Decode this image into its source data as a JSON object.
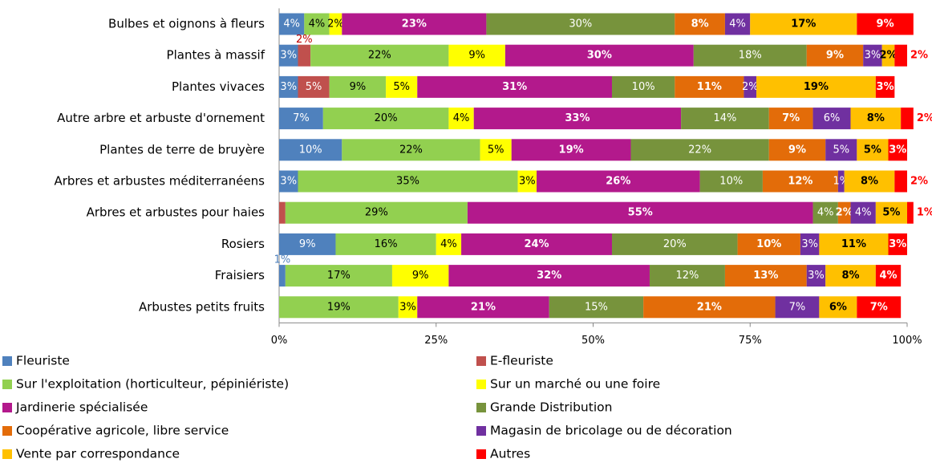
{
  "chart_data": {
    "type": "stacked_bar_horizontal",
    "categories": [
      "Bulbes et oignons à fleurs",
      "Plantes à massif",
      "Plantes vivaces",
      "Autre arbre et arbuste d'ornement",
      "Plantes de terre de bruyère",
      "Arbres et arbustes méditerranéens",
      "Arbres et arbustes pour haies",
      "Rosiers",
      "Fraisiers",
      "Arbustes petits fruits"
    ],
    "xlim": [
      0,
      100
    ],
    "xticks": [
      {
        "value": 0,
        "label": "0%"
      },
      {
        "value": 25,
        "label": "25%"
      },
      {
        "value": 50,
        "label": "50%"
      },
      {
        "value": 75,
        "label": "75%"
      },
      {
        "value": 100,
        "label": "100%"
      }
    ],
    "series": [
      {
        "name": "Fleuriste",
        "color": "#4f81bd",
        "values": [
          4,
          3,
          3,
          7,
          10,
          3,
          0,
          9,
          1,
          0
        ],
        "value_labels": [
          "4%",
          "3%",
          "3%",
          "7%",
          "10%",
          "3%",
          null,
          "9%",
          "1%",
          null
        ]
      },
      {
        "name": "E-fleuriste",
        "color": "#c0504d",
        "values": [
          0,
          2,
          5,
          0,
          0,
          0,
          1,
          0,
          0,
          0
        ],
        "value_labels": [
          null,
          "2%",
          "5%",
          null,
          null,
          null,
          "1%",
          null,
          null,
          null
        ]
      },
      {
        "name": "Sur l'exploitation (horticulteur, pépiniériste)",
        "color": "#92d050",
        "values": [
          4,
          22,
          9,
          20,
          22,
          35,
          29,
          16,
          17,
          19
        ],
        "value_labels": [
          "4%",
          "22%",
          "9%",
          "20%",
          "22%",
          "35%",
          "29%",
          "16%",
          "17%",
          "19%"
        ]
      },
      {
        "name": "Sur un marché ou une foire",
        "color": "#ffff00",
        "values": [
          2,
          9,
          5,
          4,
          5,
          3,
          0,
          4,
          9,
          3
        ],
        "value_labels": [
          "2%",
          "9%",
          "5%",
          "4%",
          "5%",
          "3%",
          null,
          "4%",
          "9%",
          "3%"
        ]
      },
      {
        "name": "Jardinerie spécialisée",
        "color": "#b3198c",
        "values": [
          23,
          30,
          31,
          33,
          19,
          26,
          55,
          24,
          32,
          21
        ],
        "value_labels": [
          "23%",
          "30%",
          "31%",
          "33%",
          "19%",
          "26%",
          "55%",
          "24%",
          "32%",
          "21%"
        ]
      },
      {
        "name": "Grande Distribution",
        "color": "#77933c",
        "values": [
          30,
          18,
          10,
          14,
          22,
          10,
          4,
          20,
          12,
          15
        ],
        "value_labels": [
          "30%",
          "18%",
          "10%",
          "14%",
          "22%",
          "10%",
          "4%",
          "20%",
          "12%",
          "15%"
        ]
      },
      {
        "name": "Coopérative agricole, libre service",
        "color": "#e36c09",
        "values": [
          8,
          9,
          11,
          7,
          9,
          12,
          2,
          10,
          13,
          21
        ],
        "value_labels": [
          "8%",
          "9%",
          "11%",
          "7%",
          "9%",
          "12%",
          "2%",
          "10%",
          "13%",
          "21%"
        ]
      },
      {
        "name": "Magasin de bricolage ou de décoration",
        "color": "#7030a0",
        "values": [
          4,
          3,
          2,
          6,
          5,
          1,
          4,
          3,
          3,
          7
        ],
        "value_labels": [
          "4%",
          "3%",
          "2%",
          "6%",
          "5%",
          "1%",
          "4%",
          "3%",
          "3%",
          "7%"
        ]
      },
      {
        "name": "Vente par correspondance",
        "color": "#ffc000",
        "values": [
          17,
          2,
          19,
          8,
          5,
          8,
          5,
          11,
          8,
          6
        ],
        "value_labels": [
          "17%",
          "2%",
          "19%",
          "8%",
          "5%",
          "8%",
          "5%",
          "11%",
          "8%",
          "6%"
        ]
      },
      {
        "name": "Autres",
        "color": "#ff0000",
        "values": [
          9,
          2,
          3,
          2,
          3,
          2,
          1,
          3,
          4,
          7
        ],
        "value_labels": [
          "9%",
          "2%",
          "3%",
          "2%",
          "3%",
          "2%",
          "1%",
          "3%",
          "4%",
          "7%"
        ]
      }
    ]
  }
}
